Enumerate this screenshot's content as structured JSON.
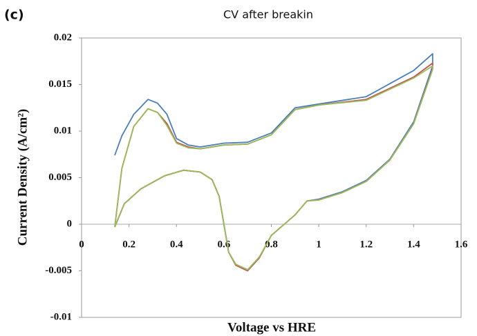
{
  "chart_data": {
    "type": "line",
    "panel_label": "(c)",
    "title": "CV after breakin",
    "x_label": "Voltage  vs  HRE",
    "y_label": "Current Density  (A/cm²)",
    "xlim": [
      0,
      1.6
    ],
    "xticks": [
      0,
      0.2,
      0.4,
      0.6,
      0.8,
      1,
      1.2,
      1.4,
      1.6
    ],
    "ylim": [
      -0.01,
      0.02
    ],
    "yticks": [
      0.02,
      0.015,
      0.01,
      0.005,
      0,
      -0.005,
      -0.01
    ],
    "series": [
      {
        "color": "#4a7ebb",
        "x": [
          0.14,
          0.17,
          0.22,
          0.28,
          0.32,
          0.36,
          0.4,
          0.45,
          0.5,
          0.6,
          0.7,
          0.8,
          0.9,
          1.0,
          1.2,
          1.4,
          1.48,
          1.48,
          1.4,
          1.3,
          1.2,
          1.1,
          1.0,
          0.95,
          0.9,
          0.8,
          0.75,
          0.7,
          0.65,
          0.62,
          0.6,
          0.58,
          0.55,
          0.5,
          0.43,
          0.35,
          0.25,
          0.18,
          0.14
        ],
        "values": [
          0.0074,
          0.0095,
          0.0118,
          0.0134,
          0.013,
          0.0118,
          0.0092,
          0.0085,
          0.0083,
          0.0087,
          0.0088,
          0.0098,
          0.0125,
          0.0129,
          0.0137,
          0.0165,
          0.0183,
          0.017,
          0.011,
          0.007,
          0.0047,
          0.0035,
          0.0027,
          0.0025,
          0.001,
          -0.0012,
          -0.0035,
          -0.0049,
          -0.0043,
          -0.003,
          0.0,
          0.003,
          0.0048,
          0.0056,
          0.0058,
          0.0052,
          0.0038,
          0.0022,
          -0.0003
        ]
      },
      {
        "color": "#c0504d",
        "x": [
          0.14,
          0.17,
          0.22,
          0.28,
          0.32,
          0.36,
          0.4,
          0.45,
          0.5,
          0.6,
          0.7,
          0.8,
          0.9,
          1.0,
          1.2,
          1.4,
          1.48,
          1.48,
          1.4,
          1.3,
          1.2,
          1.1,
          1.0,
          0.95,
          0.9,
          0.8,
          0.75,
          0.7,
          0.65,
          0.62,
          0.6,
          0.58,
          0.55,
          0.5,
          0.43,
          0.35,
          0.25,
          0.18,
          0.14
        ],
        "values": [
          -0.0003,
          0.006,
          0.0105,
          0.0124,
          0.012,
          0.0108,
          0.0088,
          0.0083,
          0.0081,
          0.0085,
          0.0086,
          0.0096,
          0.0123,
          0.0128,
          0.0134,
          0.0158,
          0.0173,
          0.0167,
          0.0108,
          0.0069,
          0.0046,
          0.0034,
          0.0026,
          0.0025,
          0.001,
          -0.0012,
          -0.0036,
          -0.005,
          -0.0044,
          -0.003,
          0.0,
          0.003,
          0.0048,
          0.0056,
          0.0058,
          0.0052,
          0.0038,
          0.0022,
          -0.0003
        ]
      },
      {
        "color": "#9bbb59",
        "x": [
          0.14,
          0.17,
          0.22,
          0.28,
          0.32,
          0.36,
          0.4,
          0.45,
          0.5,
          0.6,
          0.7,
          0.8,
          0.9,
          1.0,
          1.2,
          1.4,
          1.48,
          1.48,
          1.4,
          1.3,
          1.2,
          1.1,
          1.0,
          0.95,
          0.9,
          0.8,
          0.75,
          0.7,
          0.65,
          0.62,
          0.6,
          0.58,
          0.55,
          0.5,
          0.43,
          0.35,
          0.25,
          0.18,
          0.14
        ],
        "values": [
          -0.0003,
          0.006,
          0.0105,
          0.0124,
          0.012,
          0.0106,
          0.0087,
          0.0082,
          0.0081,
          0.0085,
          0.0086,
          0.0096,
          0.0123,
          0.0128,
          0.0133,
          0.0157,
          0.017,
          0.0166,
          0.0108,
          0.0069,
          0.0046,
          0.0034,
          0.0026,
          0.0025,
          0.001,
          -0.0012,
          -0.0035,
          -0.0049,
          -0.0043,
          -0.003,
          0.0,
          0.003,
          0.0048,
          0.0056,
          0.0058,
          0.0052,
          0.0038,
          0.0022,
          -0.0003
        ]
      }
    ]
  }
}
